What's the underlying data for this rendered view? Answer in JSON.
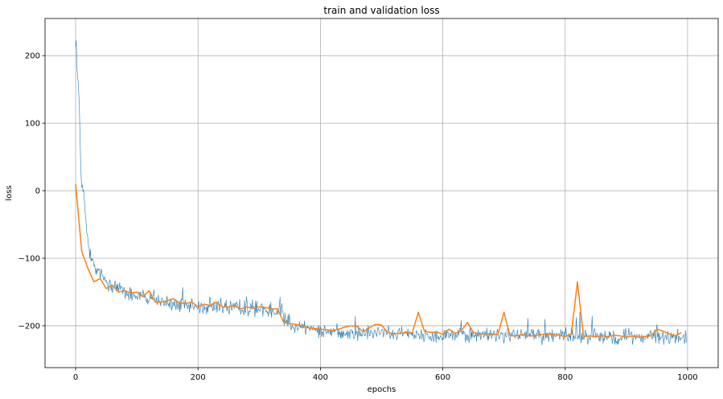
{
  "chart_data": {
    "type": "line",
    "title": "train and validation loss",
    "xlabel": "epochs",
    "ylabel": "loss",
    "xlim": [
      -50,
      1050
    ],
    "ylim": [
      -262,
      255
    ],
    "x_ticks": [
      0,
      200,
      400,
      600,
      800,
      1000
    ],
    "y_ticks": [
      -200,
      -100,
      0,
      100,
      200
    ],
    "grid": true,
    "colors": {
      "train": "#1f77b4",
      "validation": "#ff7f0e"
    },
    "series": [
      {
        "key": "train",
        "x_start": 0,
        "x_step": 1,
        "noise_amplitude": 14,
        "anchors": [
          [
            0,
            235
          ],
          [
            2,
            185
          ],
          [
            5,
            150
          ],
          [
            8,
            55
          ],
          [
            10,
            20
          ],
          [
            13,
            -5
          ],
          [
            16,
            -40
          ],
          [
            20,
            -75
          ],
          [
            25,
            -100
          ],
          [
            30,
            -115
          ],
          [
            40,
            -125
          ],
          [
            50,
            -135
          ],
          [
            60,
            -140
          ],
          [
            80,
            -150
          ],
          [
            100,
            -155
          ],
          [
            120,
            -160
          ],
          [
            140,
            -165
          ],
          [
            160,
            -168
          ],
          [
            180,
            -170
          ],
          [
            200,
            -172
          ],
          [
            250,
            -172
          ],
          [
            300,
            -175
          ],
          [
            330,
            -178
          ],
          [
            350,
            -195
          ],
          [
            380,
            -205
          ],
          [
            400,
            -207
          ],
          [
            450,
            -210
          ],
          [
            500,
            -212
          ],
          [
            600,
            -213
          ],
          [
            700,
            -214
          ],
          [
            800,
            -215
          ],
          [
            900,
            -215
          ],
          [
            999,
            -217
          ]
        ]
      },
      {
        "key": "validation",
        "points": [
          [
            0,
            10
          ],
          [
            10,
            -90
          ],
          [
            20,
            -115
          ],
          [
            30,
            -135
          ],
          [
            40,
            -130
          ],
          [
            50,
            -145
          ],
          [
            60,
            -140
          ],
          [
            70,
            -150
          ],
          [
            80,
            -148
          ],
          [
            90,
            -152
          ],
          [
            100,
            -150
          ],
          [
            110,
            -157
          ],
          [
            120,
            -148
          ],
          [
            130,
            -165
          ],
          [
            140,
            -165
          ],
          [
            150,
            -163
          ],
          [
            160,
            -160
          ],
          [
            170,
            -166
          ],
          [
            180,
            -167
          ],
          [
            190,
            -165
          ],
          [
            200,
            -172
          ],
          [
            210,
            -168
          ],
          [
            220,
            -170
          ],
          [
            230,
            -165
          ],
          [
            240,
            -172
          ],
          [
            250,
            -172
          ],
          [
            260,
            -170
          ],
          [
            270,
            -175
          ],
          [
            280,
            -172
          ],
          [
            290,
            -174
          ],
          [
            300,
            -172
          ],
          [
            310,
            -173
          ],
          [
            320,
            -175
          ],
          [
            330,
            -175
          ],
          [
            340,
            -195
          ],
          [
            350,
            -197
          ],
          [
            360,
            -198
          ],
          [
            370,
            -200
          ],
          [
            380,
            -203
          ],
          [
            390,
            -204
          ],
          [
            400,
            -205
          ],
          [
            410,
            -206
          ],
          [
            420,
            -207
          ],
          [
            430,
            -205
          ],
          [
            440,
            -202
          ],
          [
            450,
            -200
          ],
          [
            460,
            -201
          ],
          [
            470,
            -209
          ],
          [
            480,
            -203
          ],
          [
            490,
            -198
          ],
          [
            500,
            -199
          ],
          [
            510,
            -210
          ],
          [
            520,
            -212
          ],
          [
            530,
            -211
          ],
          [
            540,
            -210
          ],
          [
            550,
            -211
          ],
          [
            560,
            -180
          ],
          [
            570,
            -208
          ],
          [
            580,
            -210
          ],
          [
            590,
            -209
          ],
          [
            600,
            -213
          ],
          [
            610,
            -205
          ],
          [
            620,
            -211
          ],
          [
            630,
            -208
          ],
          [
            640,
            -195
          ],
          [
            650,
            -210
          ],
          [
            660,
            -212
          ],
          [
            670,
            -212
          ],
          [
            680,
            -212
          ],
          [
            690,
            -213
          ],
          [
            700,
            -180
          ],
          [
            710,
            -215
          ],
          [
            720,
            -215
          ],
          [
            730,
            -213
          ],
          [
            740,
            -215
          ],
          [
            750,
            -215
          ],
          [
            760,
            -213
          ],
          [
            770,
            -212
          ],
          [
            780,
            -213
          ],
          [
            790,
            -214
          ],
          [
            800,
            -216
          ],
          [
            810,
            -212
          ],
          [
            820,
            -135
          ],
          [
            830,
            -216
          ],
          [
            840,
            -215
          ],
          [
            850,
            -216
          ],
          [
            860,
            -215
          ],
          [
            870,
            -216
          ],
          [
            880,
            -214
          ],
          [
            890,
            -215
          ],
          [
            900,
            -217
          ],
          [
            910,
            -215
          ],
          [
            920,
            -217
          ],
          [
            930,
            -216
          ],
          [
            940,
            -215
          ],
          [
            950,
            -205
          ],
          [
            960,
            -208
          ],
          [
            970,
            -212
          ],
          [
            980,
            -215
          ],
          [
            990,
            -210
          ]
        ]
      }
    ]
  }
}
